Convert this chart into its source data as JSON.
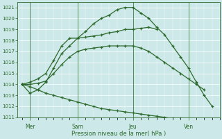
{
  "background_color": "#cce8e8",
  "grid_color": "#ffffff",
  "line_color": "#2d6a2d",
  "xlabel": "Pression niveau de la mer( hPa )",
  "ylim": [
    1011,
    1021.5
  ],
  "yticks": [
    1011,
    1012,
    1013,
    1014,
    1015,
    1016,
    1017,
    1018,
    1019,
    1020,
    1021
  ],
  "xlim": [
    -0.3,
    12.5
  ],
  "day_labels": [
    "Mer",
    "Sam",
    "Jeu",
    "Ven"
  ],
  "day_positions": [
    0.5,
    3.5,
    7.0,
    10.5
  ],
  "vline_positions": [
    0.5,
    3.5,
    7.0,
    10.5
  ],
  "series": [
    {
      "x": [
        0.0,
        0.5,
        1.0,
        1.5,
        2.0,
        2.5,
        3.0,
        3.5,
        4.0,
        4.5,
        5.0,
        5.5,
        6.0,
        6.5,
        7.0,
        7.5,
        8.0,
        8.5,
        9.0,
        9.5,
        10.0,
        10.5,
        11.0,
        11.5,
        12.0
      ],
      "y": [
        1014.0,
        1013.2,
        1013.5,
        1014.2,
        1015.5,
        1016.8,
        1017.5,
        1018.2,
        1018.8,
        1019.5,
        1020.0,
        1020.3,
        1020.8,
        1021.0,
        1021.0,
        1020.5,
        1020.0,
        1019.2,
        1018.5,
        1017.5,
        1016.5,
        1015.5,
        1014.2,
        1013.0,
        1012.0
      ]
    },
    {
      "x": [
        0.0,
        0.5,
        1.0,
        1.5,
        2.0,
        2.5,
        3.0,
        3.5,
        4.0,
        4.5,
        5.0,
        5.5,
        6.0,
        6.5,
        7.0,
        7.5,
        8.0,
        8.5
      ],
      "y": [
        1014.0,
        1014.2,
        1014.5,
        1015.0,
        1016.2,
        1017.5,
        1018.2,
        1018.2,
        1018.3,
        1018.4,
        1018.5,
        1018.7,
        1018.8,
        1019.0,
        1019.0,
        1019.1,
        1019.2,
        1019.0
      ]
    },
    {
      "x": [
        0.0,
        0.5,
        1.0,
        1.5,
        2.0,
        2.5,
        3.0,
        3.5,
        4.0,
        4.5,
        5.0,
        5.5,
        6.0,
        6.5,
        7.0,
        7.5,
        8.0,
        8.5,
        9.0,
        9.5,
        10.0,
        10.5,
        11.0,
        11.5
      ],
      "y": [
        1014.0,
        1014.0,
        1014.1,
        1014.3,
        1015.0,
        1015.8,
        1016.5,
        1017.0,
        1017.2,
        1017.3,
        1017.4,
        1017.5,
        1017.5,
        1017.5,
        1017.5,
        1017.3,
        1017.0,
        1016.5,
        1016.0,
        1015.5,
        1015.0,
        1014.5,
        1014.0,
        1013.5
      ]
    },
    {
      "x": [
        0.0,
        0.5,
        1.0,
        1.5,
        2.0,
        2.5,
        3.0,
        3.5,
        4.0,
        4.5,
        5.0,
        5.5,
        6.0,
        6.5,
        7.0,
        7.5,
        8.0,
        8.5,
        9.0,
        9.5,
        10.0,
        10.5,
        11.0,
        11.5,
        12.0
      ],
      "y": [
        1014.0,
        1013.8,
        1013.5,
        1013.2,
        1013.0,
        1012.8,
        1012.6,
        1012.4,
        1012.2,
        1012.0,
        1011.8,
        1011.7,
        1011.6,
        1011.5,
        1011.4,
        1011.3,
        1011.2,
        1011.1,
        1011.0,
        1010.9,
        1010.9,
        1010.8,
        1010.8,
        1010.8,
        1010.8
      ]
    }
  ]
}
